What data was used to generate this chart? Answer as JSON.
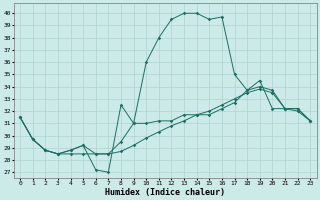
{
  "xlabel": "Humidex (Indice chaleur)",
  "bg_color": "#cceae8",
  "grid_color": "#aed4d0",
  "line_color": "#1a6e64",
  "x_ticks": [
    0,
    1,
    2,
    3,
    4,
    5,
    6,
    7,
    8,
    9,
    10,
    11,
    12,
    13,
    14,
    15,
    16,
    17,
    18,
    19,
    20,
    21,
    22,
    23
  ],
  "y_ticks": [
    27,
    28,
    29,
    30,
    31,
    32,
    33,
    34,
    35,
    36,
    37,
    38,
    39,
    40
  ],
  "ylim": [
    26.5,
    40.8
  ],
  "xlim": [
    -0.5,
    23.5
  ],
  "series1_x": [
    0,
    1,
    2,
    3,
    4,
    5,
    6,
    7,
    8,
    9,
    10,
    11,
    12,
    13,
    14,
    15,
    16,
    17,
    18,
    19,
    20,
    21,
    22,
    23
  ],
  "series1_y": [
    31.5,
    29.7,
    28.8,
    28.5,
    28.5,
    28.5,
    28.5,
    28.5,
    28.7,
    29.2,
    29.8,
    30.3,
    30.8,
    31.2,
    31.7,
    32.0,
    32.5,
    33.0,
    33.5,
    33.8,
    33.5,
    32.2,
    32.0,
    31.2
  ],
  "series2_x": [
    0,
    1,
    2,
    3,
    4,
    5,
    6,
    7,
    8,
    9,
    10,
    11,
    12,
    13,
    14,
    15,
    16,
    17,
    18,
    19,
    20,
    21,
    22,
    23
  ],
  "series2_y": [
    31.5,
    29.7,
    28.8,
    28.5,
    28.8,
    29.2,
    28.5,
    28.5,
    29.5,
    31.0,
    31.0,
    31.2,
    31.2,
    31.7,
    31.7,
    31.7,
    32.2,
    32.7,
    33.7,
    34.0,
    33.7,
    32.2,
    32.2,
    31.2
  ],
  "series3_x": [
    0,
    1,
    2,
    3,
    4,
    5,
    6,
    7,
    8,
    9,
    10,
    11,
    12,
    13,
    14,
    15,
    16,
    17,
    18,
    19,
    20,
    21,
    22,
    23
  ],
  "series3_y": [
    31.5,
    29.7,
    28.8,
    28.5,
    28.8,
    29.2,
    27.2,
    27.0,
    32.5,
    31.0,
    36.0,
    38.0,
    39.5,
    40.0,
    40.0,
    39.5,
    39.7,
    35.0,
    33.7,
    34.5,
    32.2,
    32.2,
    32.2,
    31.2
  ]
}
